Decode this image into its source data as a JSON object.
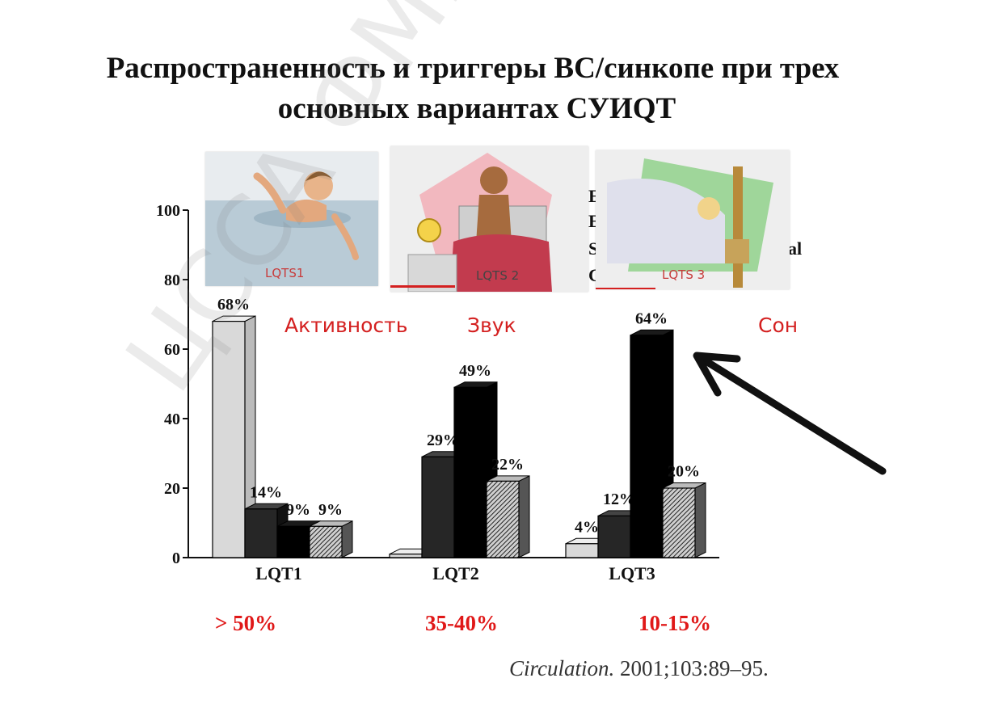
{
  "title": {
    "line1": "Распространенность и триггеры ВС/синкопе при трех",
    "line2": "основных вариантах СУИQT"
  },
  "thumbnails": [
    {
      "label": "LQTS1",
      "icon": "swimming-person-icon"
    },
    {
      "label": "LQTS 2",
      "icon": "alarm-clock-person-icon"
    },
    {
      "label": "LQTS 3",
      "icon": "sleeping-person-icon"
    }
  ],
  "triggers": [
    "Активность",
    "Звук",
    "Сон"
  ],
  "prevalence": [
    "> 50%",
    "35-40%",
    "10-15%"
  ],
  "citation": {
    "journal": "Circulation.",
    "details": " 2001;103:89–95."
  },
  "watermark": "ЦССА ФМБА",
  "colors": {
    "accent_red": "#d42020",
    "bar_light": "#d9d9d9",
    "bar_dark": "#262626",
    "bar_black": "#000000",
    "bar_hatched": "#888888"
  },
  "chart_data": {
    "type": "bar",
    "categories": [
      "LQT1",
      "LQT2",
      "LQT3"
    ],
    "series": [
      {
        "values": [
          68,
          1,
          4
        ],
        "labels": [
          "68%",
          "",
          "4%"
        ]
      },
      {
        "values": [
          14,
          29,
          12
        ],
        "labels": [
          "14%",
          "29%",
          "12%"
        ]
      },
      {
        "values": [
          9,
          49,
          64
        ],
        "labels": [
          "9%",
          "49%",
          "64%"
        ]
      },
      {
        "values": [
          9,
          22,
          20
        ],
        "labels": [
          "9%",
          "22%",
          "20%"
        ]
      }
    ],
    "ylim": [
      0,
      100
    ],
    "yticks": [
      0,
      20,
      40,
      60,
      80,
      100
    ],
    "legend_fragments": [
      "E",
      "E",
      "S",
      "C",
      "al"
    ]
  }
}
